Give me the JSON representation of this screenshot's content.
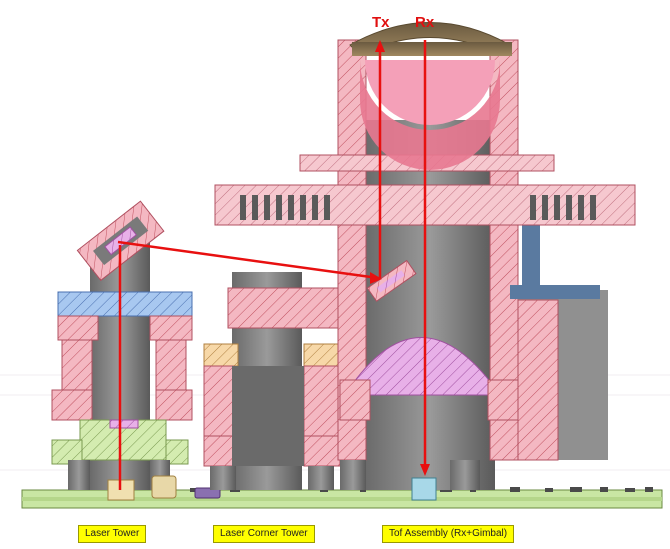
{
  "labels": {
    "laser_tower": "Laser Tower",
    "laser_corner_tower": "Laser Corner Tower",
    "tof_assembly": "Tof Assembly (Rx+Gimbal)"
  },
  "beam_tags": {
    "tx": "Tx",
    "rx": "Rx"
  },
  "colors": {
    "beam": "#e81010",
    "label_bg": "#ffff00",
    "pink_section": "#f4b8c2",
    "blue_section": "#a8c8f0",
    "green_section": "#d4ecb0",
    "orange_section": "#f7d8a8",
    "lens_magenta": "#e8b0e8",
    "gray_body": "#8a8a8a",
    "pcb_green": "#c9e6a3",
    "dome_brown": "#8a7050"
  }
}
